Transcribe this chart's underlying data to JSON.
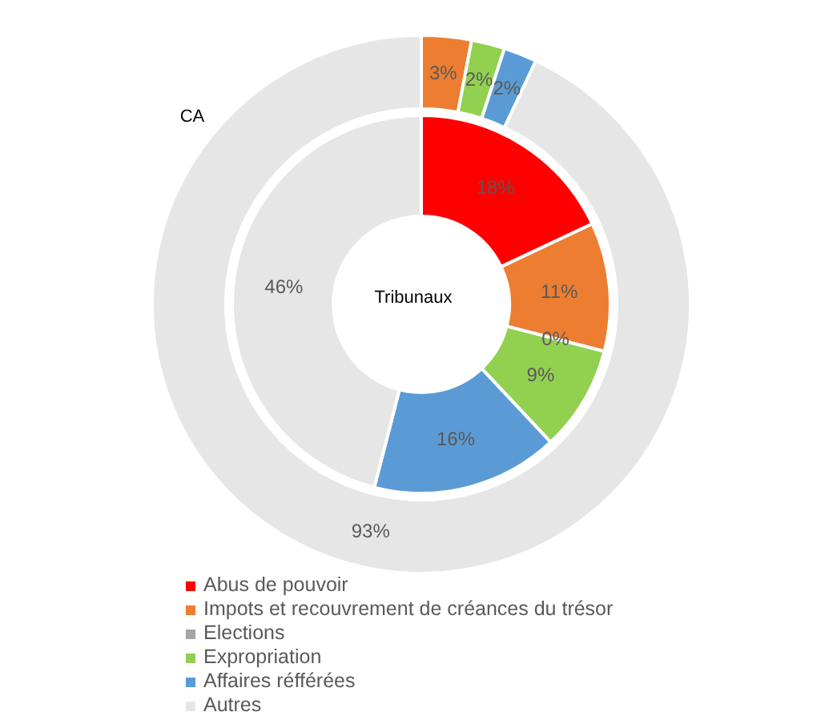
{
  "chart_data": {
    "type": "donut",
    "categories": [
      "Abus de pouvoir",
      "Impots et recouvrement de créances du trésor",
      "Elections",
      "Expropriation",
      "Affaires réfférées",
      "Autres"
    ],
    "colors": [
      "#ff0000",
      "#ed7d31",
      "#a5a5a5",
      "#92d050",
      "#5b9bd5",
      "#e6e6e6"
    ],
    "series": [
      {
        "name": "CA",
        "values": [
          0,
          3,
          0,
          2,
          2,
          93
        ],
        "value_labels": [
          null,
          "3%",
          null,
          "2%",
          "2%",
          "93%"
        ]
      },
      {
        "name": "Tribunaux",
        "values": [
          18,
          11,
          0,
          9,
          16,
          46
        ],
        "value_labels": [
          "18%",
          "11%",
          "0%",
          "9%",
          "16%",
          "46%"
        ]
      }
    ],
    "legend": "bottom left"
  }
}
